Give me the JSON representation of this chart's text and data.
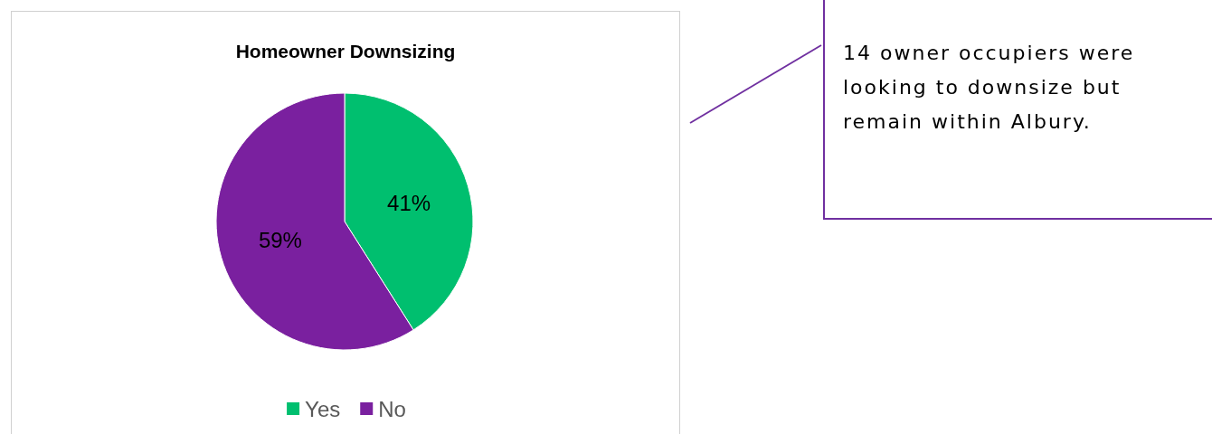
{
  "chart_data": {
    "type": "pie",
    "title": "Homeowner Downsizing",
    "categories": [
      "Yes",
      "No"
    ],
    "values": [
      41,
      59
    ],
    "colors": [
      "#00bf6f",
      "#7a209f"
    ],
    "value_labels": [
      "41%",
      "59%"
    ],
    "legend": "bottom",
    "annotations": [
      "14 owner occupiers were looking to downsize but remain within Albury."
    ]
  }
}
